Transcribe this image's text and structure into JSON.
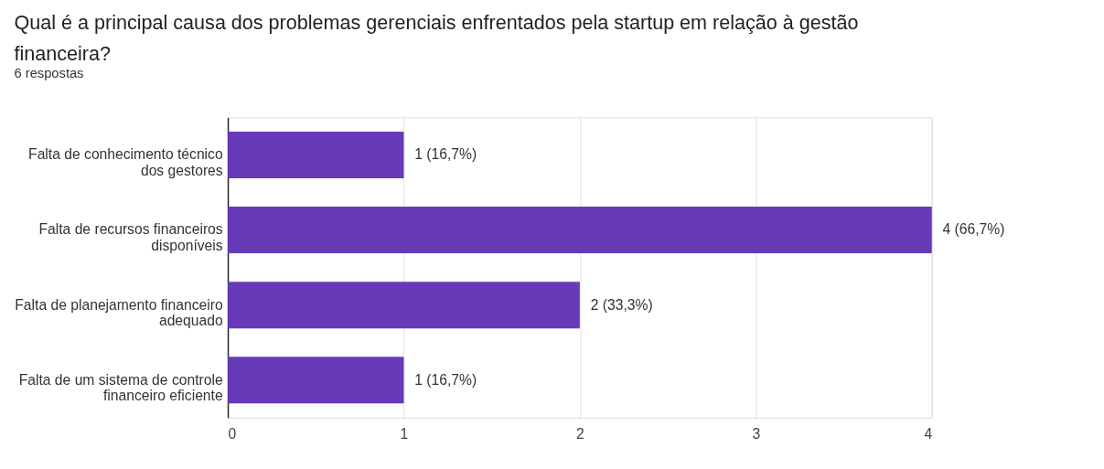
{
  "chart_data": {
    "type": "bar",
    "orientation": "horizontal",
    "title": "Qual é a principal causa dos problemas gerenciais enfrentados pela startup em relação à gestão financeira?",
    "subtitle": "6 respostas",
    "categories": [
      "Falta de conhecimento técnico dos gestores",
      "Falta de recursos financeiros disponíveis",
      "Falta de planejamento financeiro adequado",
      "Falta de um sistema de controle financeiro eficiente"
    ],
    "values": [
      1,
      4,
      2,
      1
    ],
    "value_labels": [
      "1 (16,7%)",
      "4 (66,7%)",
      "2 (33,3%)",
      "1 (16,7%)"
    ],
    "color": "#673ab7",
    "xlim": [
      0,
      4
    ],
    "xticks": [
      0,
      1,
      2,
      3,
      4
    ],
    "grid": "x"
  }
}
